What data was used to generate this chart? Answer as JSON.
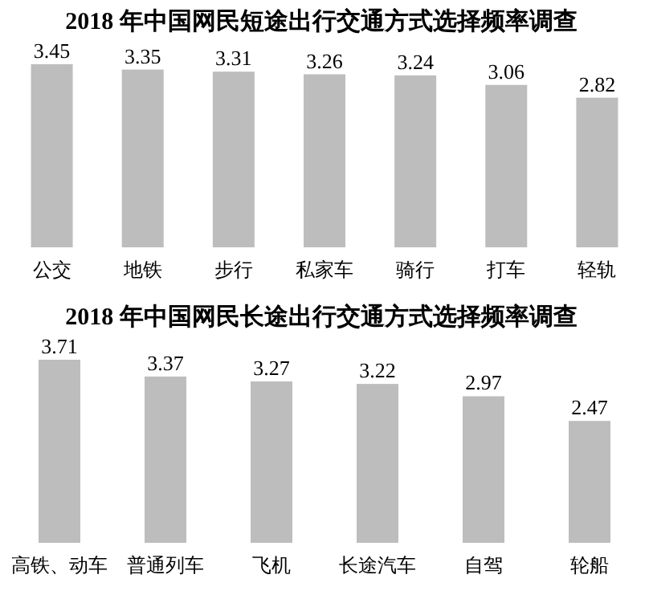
{
  "chart_data": [
    {
      "type": "bar",
      "title": "2018 年中国网民短途出行交通方式选择频率调查",
      "categories": [
        "公交",
        "地铁",
        "步行",
        "私家车",
        "骑行",
        "打车",
        "轻轨"
      ],
      "values": [
        3.45,
        3.35,
        3.31,
        3.26,
        3.24,
        3.06,
        2.82
      ],
      "color": "#bdbdbd",
      "data_labels": true
    },
    {
      "type": "bar",
      "title": "2018 年中国网民长途出行交通方式选择频率调查",
      "categories": [
        "高铁、动车",
        "普通列车",
        "飞机",
        "长途汽车",
        "自驾",
        "轮船"
      ],
      "values": [
        3.71,
        3.37,
        3.27,
        3.22,
        2.97,
        2.47
      ],
      "color": "#bdbdbd",
      "data_labels": true
    }
  ]
}
